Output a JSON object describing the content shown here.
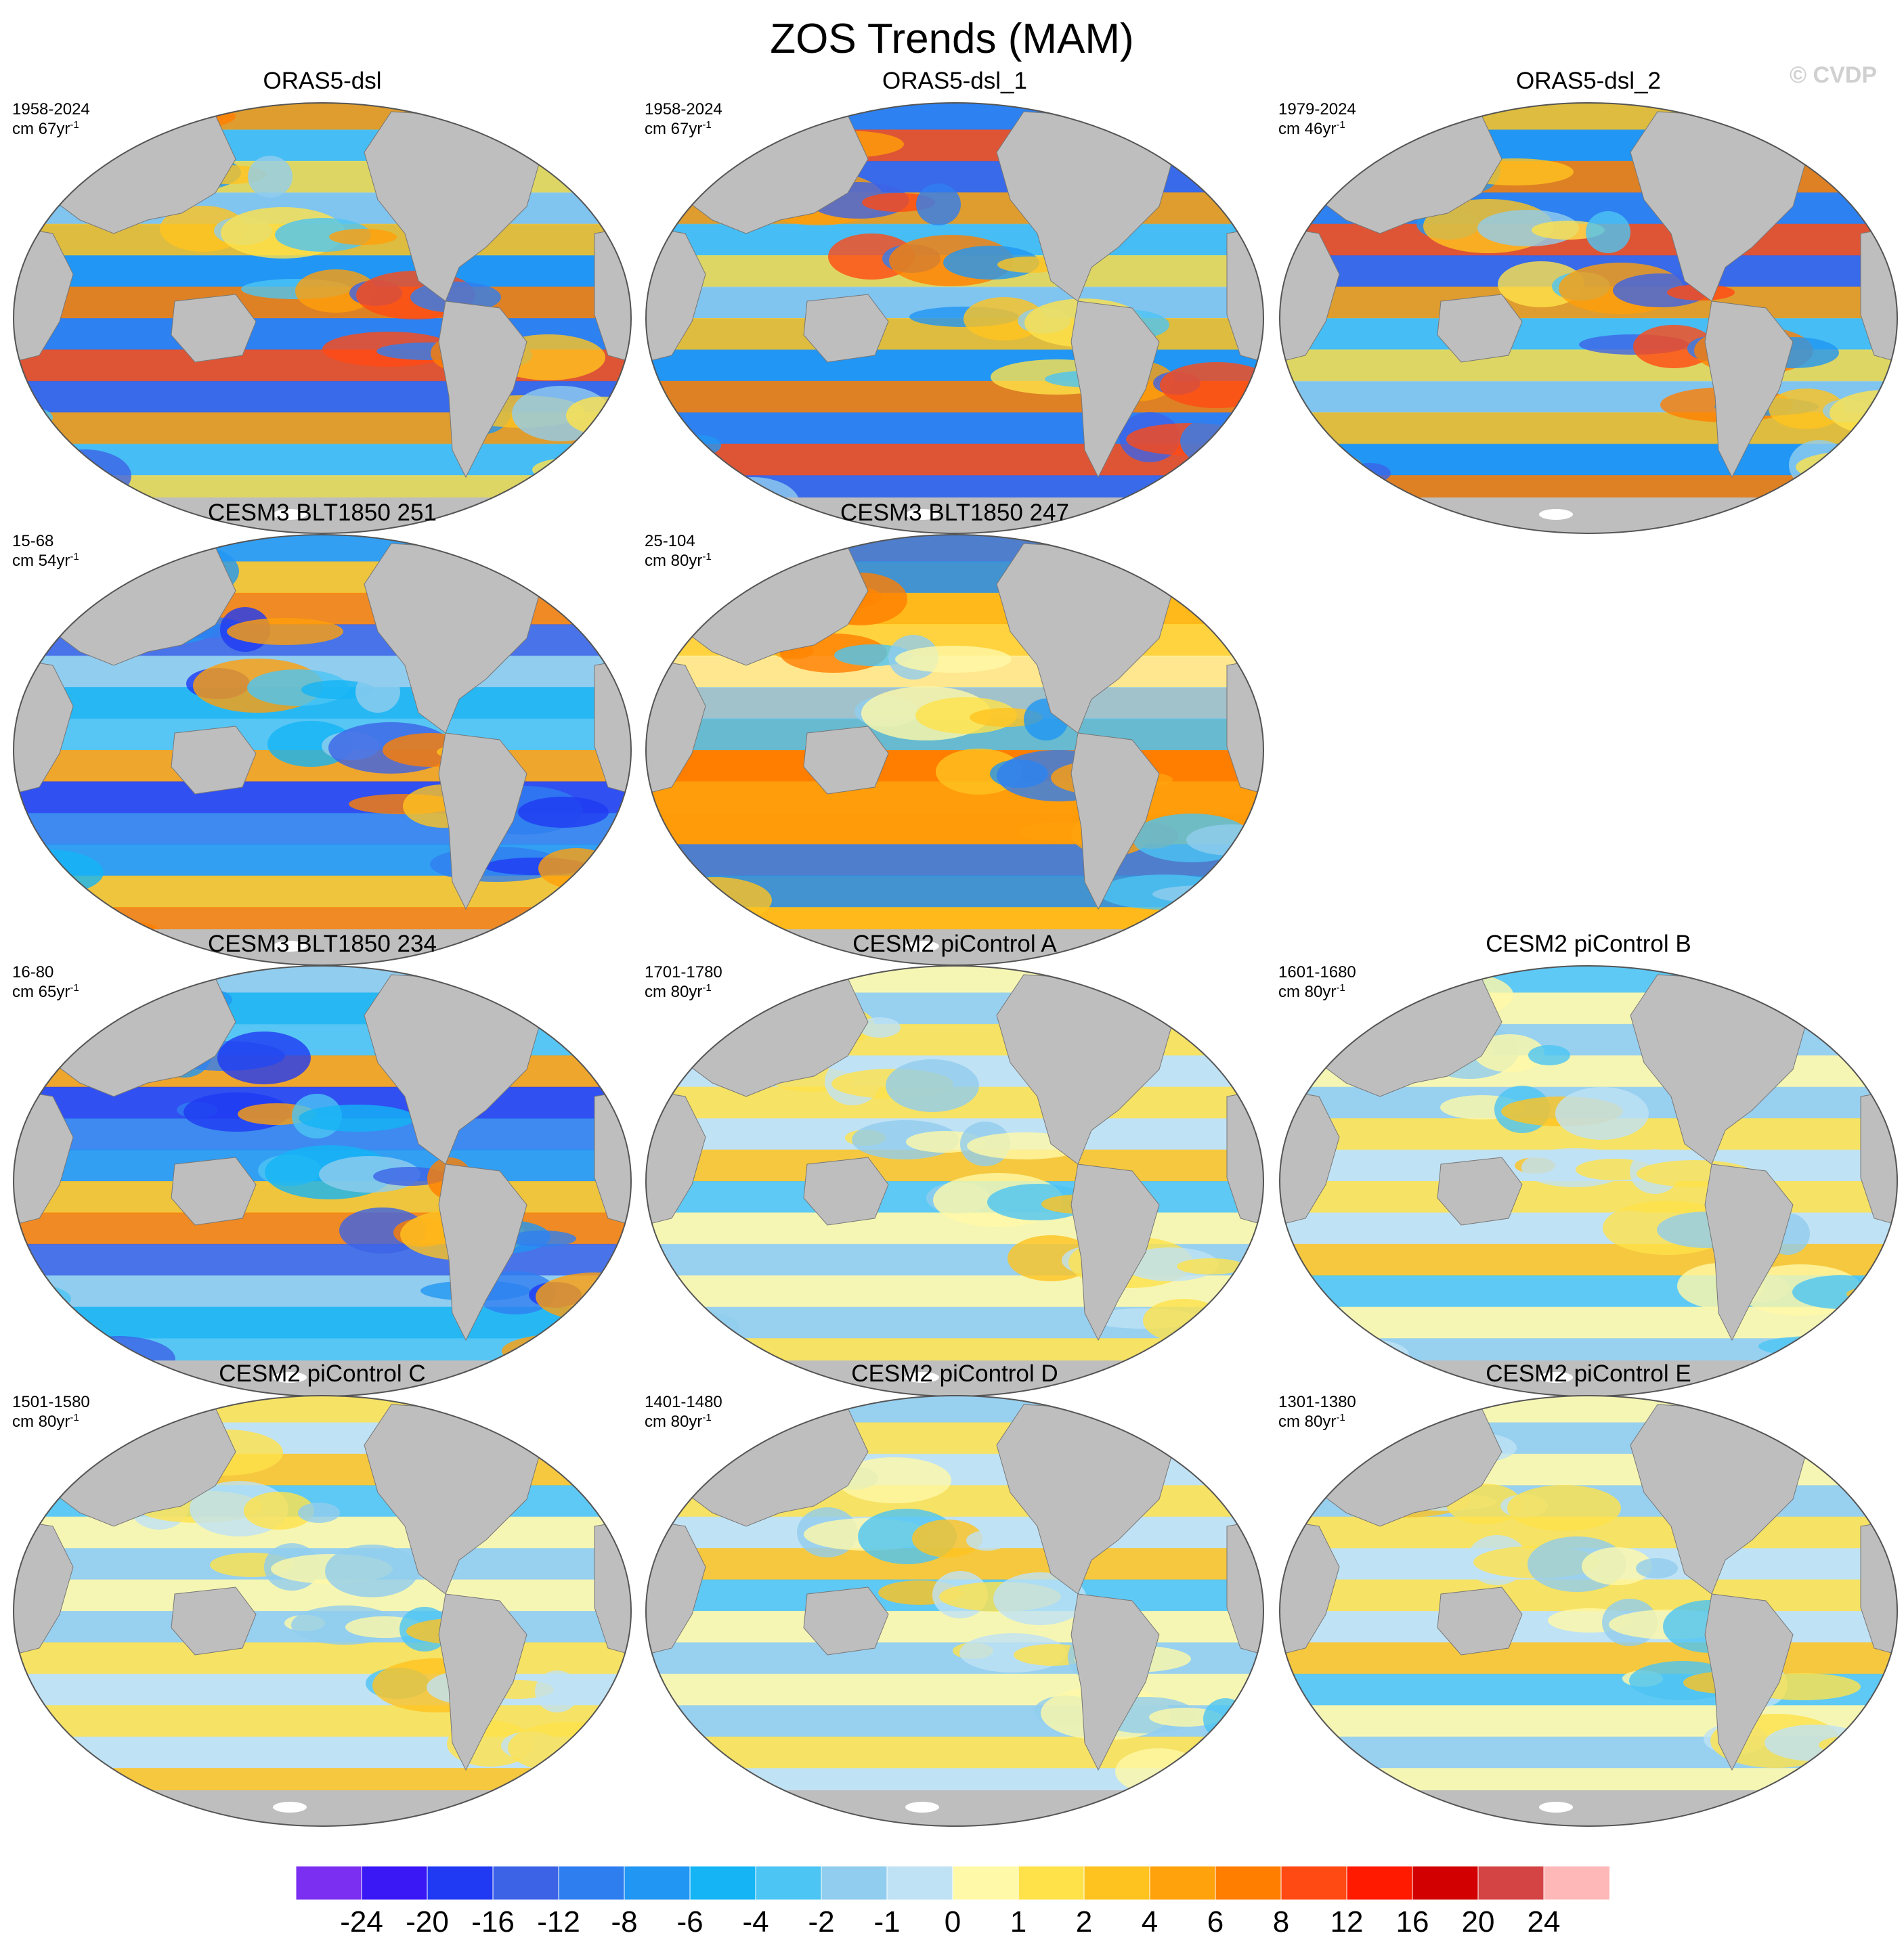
{
  "title": "ZOS Trends (MAM)",
  "copyright": "© CVDP",
  "panels": [
    {
      "title": "ORAS5-dsl",
      "years": "1958-2024",
      "unit": "cm 67yr",
      "unit_exp": "-1",
      "palette": "strong"
    },
    {
      "title": "ORAS5-dsl_1",
      "years": "1958-2024",
      "unit": "cm 67yr",
      "unit_exp": "-1",
      "palette": "strong"
    },
    {
      "title": "ORAS5-dsl_2",
      "years": "1979-2024",
      "unit": "cm 46yr",
      "unit_exp": "-1",
      "palette": "strong"
    },
    {
      "title": "CESM3 BLT1850 251",
      "years": "15-68",
      "unit": "cm 54yr",
      "unit_exp": "-1",
      "palette": "blue"
    },
    {
      "title": "CESM3 BLT1850 247",
      "years": "25-104",
      "unit": "cm 80yr",
      "unit_exp": "-1",
      "palette": "warm"
    },
    {
      "title": "CESM3 BLT1850 234",
      "years": "16-80",
      "unit": "cm 65yr",
      "unit_exp": "-1",
      "palette": "blue"
    },
    {
      "title": "CESM2 piControl A",
      "years": "1701-1780",
      "unit": "cm 80yr",
      "unit_exp": "-1",
      "palette": "weak"
    },
    {
      "title": "CESM2 piControl B",
      "years": "1601-1680",
      "unit": "cm 80yr",
      "unit_exp": "-1",
      "palette": "weak"
    },
    {
      "title": "CESM2 piControl C",
      "years": "1501-1580",
      "unit": "cm 80yr",
      "unit_exp": "-1",
      "palette": "weak"
    },
    {
      "title": "CESM2 piControl D",
      "years": "1401-1480",
      "unit": "cm 80yr",
      "unit_exp": "-1",
      "palette": "weak"
    },
    {
      "title": "CESM2 piControl E",
      "years": "1301-1380",
      "unit": "cm 80yr",
      "unit_exp": "-1",
      "palette": "weak"
    }
  ],
  "colorbar": {
    "colors": [
      "#7b2ff0",
      "#3a17f5",
      "#1f3af2",
      "#3c63e6",
      "#2f7ef0",
      "#2196f3",
      "#14b4f5",
      "#4cc4f4",
      "#91cdee",
      "#bfe2f5",
      "#fff9a8",
      "#ffe24a",
      "#ffc31f",
      "#ffa20c",
      "#ff7e00",
      "#ff4a14",
      "#ff1a00",
      "#d20000",
      "#d44444",
      "#ffb8b8"
    ],
    "labels": [
      "-24",
      "-20",
      "-16",
      "-12",
      "-8",
      "-6",
      "-4",
      "-2",
      "-1",
      "0",
      "1",
      "2",
      "4",
      "6",
      "8",
      "12",
      "16",
      "20",
      "24"
    ]
  }
}
